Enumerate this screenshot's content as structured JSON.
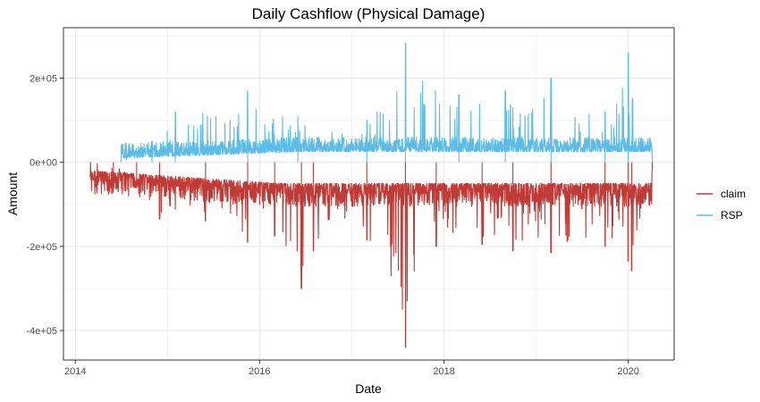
{
  "chart_data": {
    "type": "line",
    "title": "Daily Cashflow (Physical Damage)",
    "xlabel": "Date",
    "ylabel": "Amount",
    "x_range": [
      "2013-11-15",
      "2020-07-01"
    ],
    "ylim": [
      -470000,
      320000
    ],
    "x_ticks": [
      {
        "date": "2014-01-01",
        "label": "2014"
      },
      {
        "date": "2016-01-01",
        "label": "2016"
      },
      {
        "date": "2018-01-01",
        "label": "2018"
      },
      {
        "date": "2020-01-01",
        "label": "2020"
      }
    ],
    "y_ticks": [
      {
        "value": 200000,
        "label": "2e+05"
      },
      {
        "value": 0,
        "label": "0e+00"
      },
      {
        "value": -200000,
        "label": "-2e+05"
      },
      {
        "value": -400000,
        "label": "-4e+05"
      }
    ],
    "grid": true,
    "legend_position": "right",
    "series": [
      {
        "name": "claim",
        "color": "#C13B36",
        "start": "2014-03-01",
        "end": "2020-04-05",
        "points": [
          {
            "x": "2014-03-01",
            "y": 0
          },
          {
            "x": "2014-06-01",
            "y": -20000
          },
          {
            "x": "2014-09-01",
            "y": -60000
          },
          {
            "x": "2014-12-01",
            "y": -135000
          },
          {
            "x": "2015-06-01",
            "y": -140000
          },
          {
            "x": "2015-11-15",
            "y": -190000
          },
          {
            "x": "2016-03-01",
            "y": -175000
          },
          {
            "x": "2016-06-15",
            "y": -300000
          },
          {
            "x": "2016-08-01",
            "y": -210000
          },
          {
            "x": "2017-03-01",
            "y": -185000
          },
          {
            "x": "2017-08-01",
            "y": -440000
          },
          {
            "x": "2017-12-01",
            "y": -200000
          },
          {
            "x": "2018-06-01",
            "y": -195000
          },
          {
            "x": "2018-10-01",
            "y": -210000
          },
          {
            "x": "2019-03-01",
            "y": -215000
          },
          {
            "x": "2019-10-01",
            "y": -200000
          },
          {
            "x": "2020-01-01",
            "y": -235000
          },
          {
            "x": "2020-01-15",
            "y": -258000
          },
          {
            "x": "2020-04-05",
            "y": -20000
          }
        ]
      },
      {
        "name": "RSP",
        "color": "#5BBDE7",
        "start": "2014-07-01",
        "end": "2020-04-05",
        "points": [
          {
            "x": "2014-07-01",
            "y": 5000
          },
          {
            "x": "2014-11-01",
            "y": 50000
          },
          {
            "x": "2015-02-01",
            "y": 120000
          },
          {
            "x": "2015-11-15",
            "y": 170000
          },
          {
            "x": "2016-06-01",
            "y": 110000
          },
          {
            "x": "2017-03-01",
            "y": 100000
          },
          {
            "x": "2017-08-01",
            "y": 283000
          },
          {
            "x": "2018-03-01",
            "y": 160000
          },
          {
            "x": "2018-09-01",
            "y": 170000
          },
          {
            "x": "2019-03-01",
            "y": 200000
          },
          {
            "x": "2019-10-01",
            "y": 120000
          },
          {
            "x": "2020-01-01",
            "y": 260000
          },
          {
            "x": "2020-04-05",
            "y": 20000
          }
        ]
      }
    ]
  }
}
